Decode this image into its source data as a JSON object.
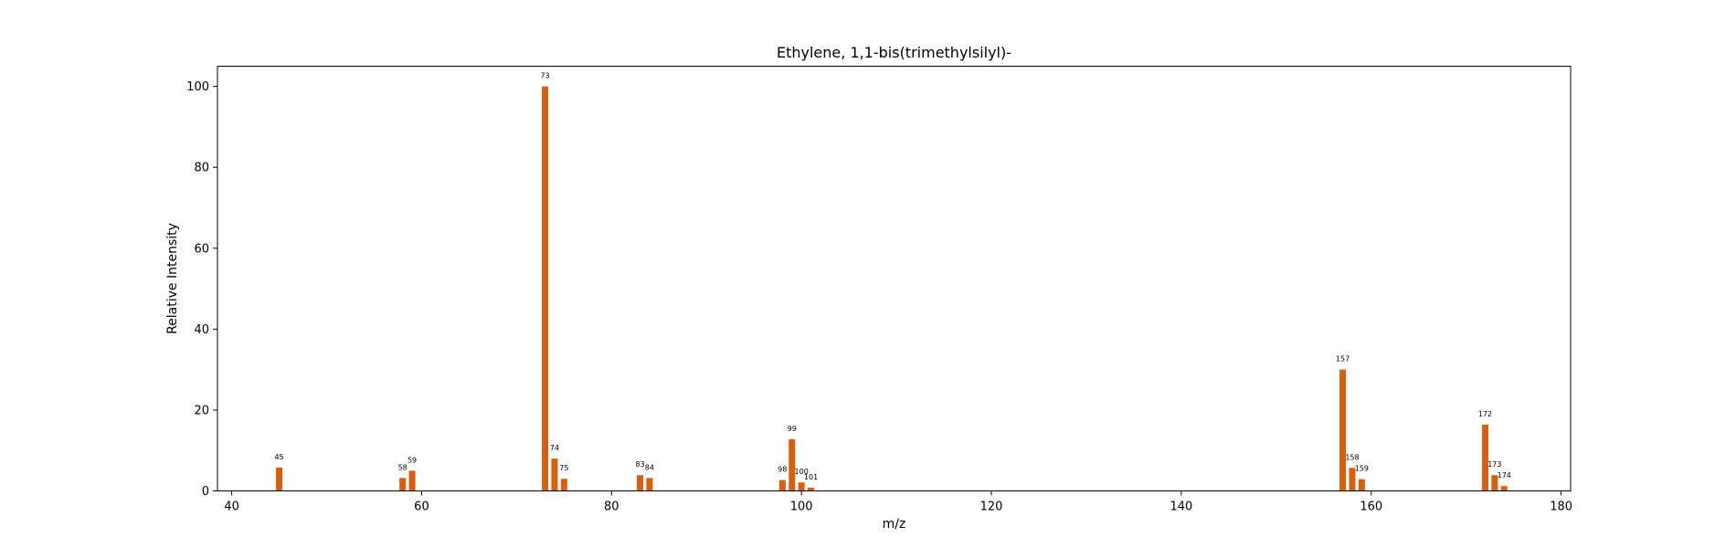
{
  "chart_data": {
    "type": "bar",
    "title": "Ethylene, 1,1-bis(trimethylsilyl)-",
    "xlabel": "m/z",
    "ylabel": "Relative Intensity",
    "xlim": [
      38.5,
      181
    ],
    "ylim": [
      0,
      105
    ],
    "xticks": [
      40,
      60,
      80,
      100,
      120,
      140,
      160,
      180
    ],
    "yticks": [
      0,
      20,
      40,
      60,
      80,
      100
    ],
    "grid": false,
    "bar_color": "#d95f0e",
    "points": [
      {
        "x": 45,
        "y": 5.8,
        "label": "45"
      },
      {
        "x": 58,
        "y": 3.2,
        "label": "58"
      },
      {
        "x": 59,
        "y": 5.0,
        "label": "59"
      },
      {
        "x": 73,
        "y": 100,
        "label": "73"
      },
      {
        "x": 74,
        "y": 8.0,
        "label": "74"
      },
      {
        "x": 75,
        "y": 3.0,
        "label": "75"
      },
      {
        "x": 83,
        "y": 3.9,
        "label": "83"
      },
      {
        "x": 84,
        "y": 3.2,
        "label": "84"
      },
      {
        "x": 98,
        "y": 2.7,
        "label": "98"
      },
      {
        "x": 99,
        "y": 12.8,
        "label": "99"
      },
      {
        "x": 100,
        "y": 2.1,
        "label": "100"
      },
      {
        "x": 101,
        "y": 0.8,
        "label": "101"
      },
      {
        "x": 157,
        "y": 30.0,
        "label": "157"
      },
      {
        "x": 158,
        "y": 5.7,
        "label": "158"
      },
      {
        "x": 159,
        "y": 2.9,
        "label": "159"
      },
      {
        "x": 172,
        "y": 16.4,
        "label": "172"
      },
      {
        "x": 173,
        "y": 3.9,
        "label": "173"
      },
      {
        "x": 174,
        "y": 1.2,
        "label": "174"
      }
    ]
  }
}
